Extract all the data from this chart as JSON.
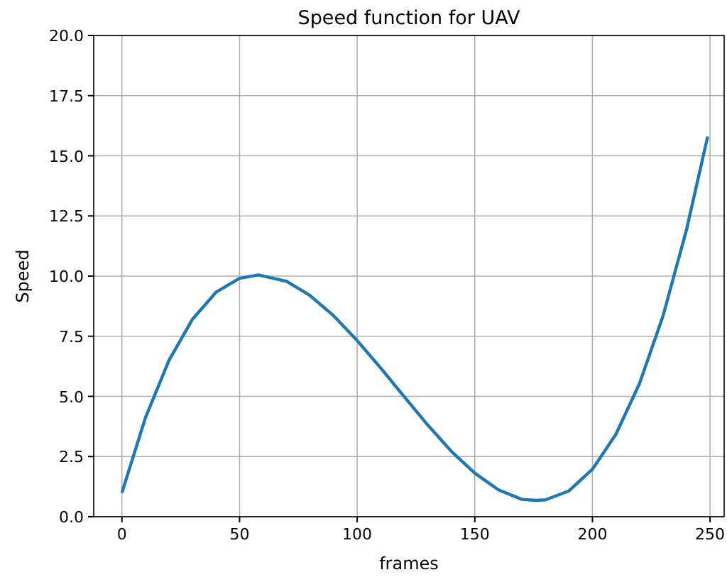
{
  "chart_data": {
    "type": "line",
    "title": "Speed function for UAV",
    "xlabel": "frames",
    "ylabel": "Speed",
    "x": [
      0,
      10,
      20,
      30,
      40,
      50,
      58,
      70,
      80,
      90,
      100,
      110,
      120,
      130,
      140,
      150,
      160,
      170,
      176,
      180,
      190,
      200,
      210,
      220,
      230,
      240,
      249
    ],
    "series": [
      {
        "color": "#1f77b4",
        "values": [
          1.0,
          4.12,
          6.5,
          8.21,
          9.33,
          9.91,
          10.05,
          9.78,
          9.19,
          8.35,
          7.32,
          6.18,
          4.99,
          3.81,
          2.72,
          1.81,
          1.12,
          0.72,
          0.68,
          0.7,
          1.07,
          1.97,
          3.43,
          5.53,
          8.34,
          11.93,
          15.8
        ]
      }
    ],
    "xlim": [
      -12,
      256
    ],
    "xticks": [
      0,
      50,
      100,
      150,
      200,
      250
    ],
    "ylim": [
      0,
      20
    ],
    "yticks": [
      {
        "value": 0,
        "label": "0.0"
      },
      {
        "value": 2.5,
        "label": "2.5"
      },
      {
        "value": 5,
        "label": "5.0"
      },
      {
        "value": 7.5,
        "label": "7.5"
      },
      {
        "value": 10,
        "label": "10.0"
      },
      {
        "value": 12.5,
        "label": "12.5"
      },
      {
        "value": 15,
        "label": "15.0"
      },
      {
        "value": 17.5,
        "label": "17.5"
      },
      {
        "value": 20,
        "label": "20.0"
      }
    ],
    "grid": true,
    "marker": "none",
    "line_style": "solid"
  }
}
